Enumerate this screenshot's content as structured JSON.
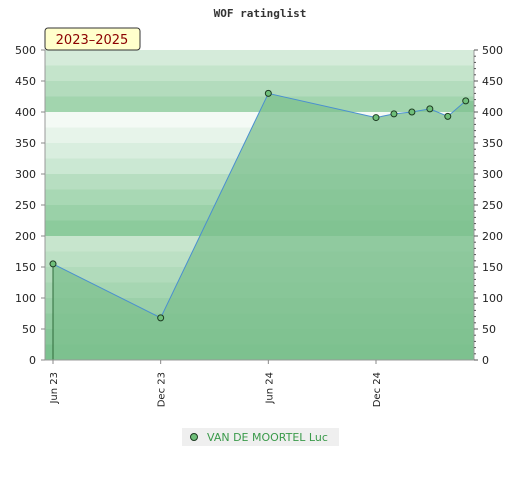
{
  "chart_data": {
    "type": "area",
    "title": "WOF ratinglist",
    "badge": "2023–2025",
    "ylim": [
      0,
      500
    ],
    "y_ticks": [
      0,
      50,
      100,
      150,
      200,
      250,
      300,
      350,
      400,
      450,
      500
    ],
    "x_ticks": [
      "Jun 23",
      "Dec 23",
      "Jun 24",
      "Dec 24"
    ],
    "series": [
      {
        "name": "VAN DE MOORTEL Luc",
        "x": [
          "2023-06",
          "2023-12",
          "2024-06",
          "2024-12",
          "2025-01",
          "2025-02",
          "2025-03",
          "2025-04",
          "2025-05"
        ],
        "values": [
          155,
          68,
          430,
          391,
          397,
          400,
          405,
          393,
          418
        ]
      }
    ],
    "grid": true,
    "colors": {
      "area": "#7dc08f",
      "line": "#4a8fd0",
      "marker": "#6fbf7a"
    }
  }
}
